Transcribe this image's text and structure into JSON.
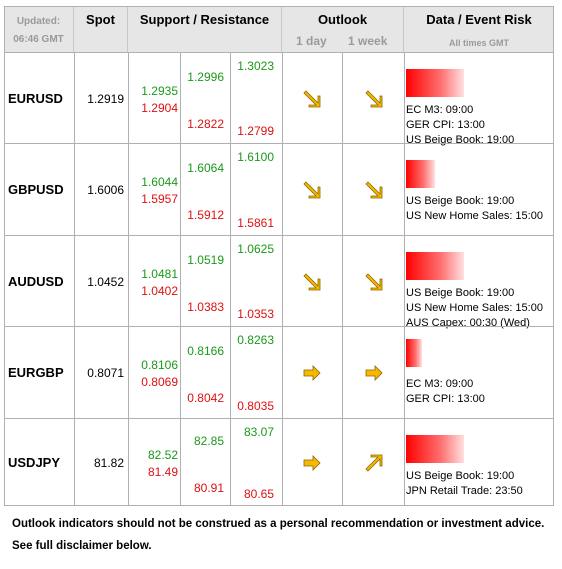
{
  "header": {
    "updated_label": "Updated:",
    "updated_time": "06:46 GMT",
    "spot": "Spot",
    "support_resistance": "Support / Resistance",
    "outlook": "Outlook",
    "outlook_1day": "1 day",
    "outlook_1week": "1 week",
    "event_risk": "Data / Event Risk",
    "event_tz": "All times GMT"
  },
  "rows": [
    {
      "pair": "EURUSD",
      "spot": "1.2919",
      "s1_high": "1.2935",
      "s1_low": "1.2904",
      "s2_high": "1.2996",
      "s2_low": "1.2822",
      "s3_high": "1.3023",
      "s3_low": "1.2799",
      "outlook_1day": "down-right",
      "outlook_1week": "down-right",
      "risk_level": 1.0,
      "events": [
        "EC M3: 09:00",
        "GER CPI: 13:00",
        "US Beige Book: 19:00"
      ]
    },
    {
      "pair": "GBPUSD",
      "spot": "1.6006",
      "s1_high": "1.6044",
      "s1_low": "1.5957",
      "s2_high": "1.6064",
      "s2_low": "1.5912",
      "s3_high": "1.6100",
      "s3_low": "1.5861",
      "outlook_1day": "down-right",
      "outlook_1week": "down-right",
      "risk_level": 0.5,
      "events": [
        "US Beige Book: 19:00",
        "US New Home Sales: 15:00"
      ]
    },
    {
      "pair": "AUDUSD",
      "spot": "1.0452",
      "s1_high": "1.0481",
      "s1_low": "1.0402",
      "s2_high": "1.0519",
      "s2_low": "1.0383",
      "s3_high": "1.0625",
      "s3_low": "1.0353",
      "outlook_1day": "down-right",
      "outlook_1week": "down-right",
      "risk_level": 1.0,
      "events": [
        "US Beige Book: 19:00",
        "US New Home Sales: 15:00",
        "AUS Capex: 00:30 (Wed)"
      ]
    },
    {
      "pair": "EURGBP",
      "spot": "0.8071",
      "s1_high": "0.8106",
      "s1_low": "0.8069",
      "s2_high": "0.8166",
      "s2_low": "0.8042",
      "s3_high": "0.8263",
      "s3_low": "0.8035",
      "outlook_1day": "right",
      "outlook_1week": "right",
      "risk_level": 0.28,
      "events": [
        "EC M3: 09:00",
        "GER CPI: 13:00"
      ]
    },
    {
      "pair": "USDJPY",
      "spot": "81.82",
      "s1_high": "82.52",
      "s1_low": "81.49",
      "s2_high": "82.85",
      "s2_low": "80.91",
      "s3_high": "83.07",
      "s3_low": "80.65",
      "outlook_1day": "right",
      "outlook_1week": "up-right",
      "risk_level": 1.0,
      "events": [
        "US Beige Book: 19:00",
        "JPN Retail Trade: 23:50"
      ]
    }
  ],
  "footer": {
    "line1": "Outlook indicators should not be construed as a personal recommendation or investment advice.",
    "line2": "See full disclaimer below."
  }
}
